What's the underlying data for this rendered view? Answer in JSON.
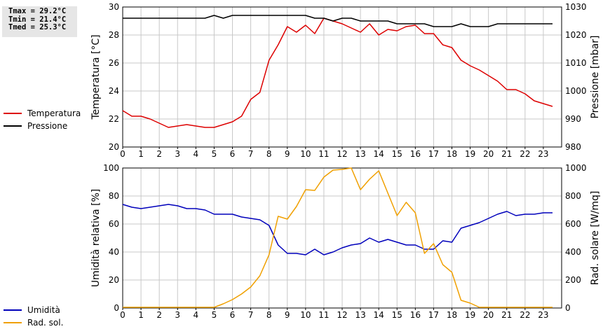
{
  "stats": {
    "tmax": "Tmax = 29.2°C",
    "tmin": "Tmin = 21.4°C",
    "tmed": "Tmed = 25.3°C"
  },
  "colors": {
    "temperature": "#dd0000",
    "pressure": "#000000",
    "humidity": "#0000bb",
    "radiation": "#f0a000",
    "grid": "#c8c8c8"
  },
  "chart_data": [
    {
      "type": "line",
      "ylabel": "Temperatura [°C]",
      "y2label": "Pressione [mbar]",
      "xlim": [
        0,
        24
      ],
      "ylim": [
        20,
        30
      ],
      "y2lim": [
        980,
        1030
      ],
      "xticks": [
        "0",
        "1",
        "2",
        "3",
        "4",
        "5",
        "6",
        "7",
        "8",
        "9",
        "10",
        "11",
        "12",
        "13",
        "14",
        "15",
        "16",
        "17",
        "18",
        "19",
        "20",
        "21",
        "22",
        "23"
      ],
      "yticks": [
        "20",
        "22",
        "24",
        "26",
        "28",
        "30"
      ],
      "y2ticks": [
        "980",
        "990",
        "1000",
        "1010",
        "1020",
        "1030"
      ],
      "grid": true,
      "legend_position": "left",
      "x": [
        0,
        0.5,
        1,
        1.5,
        2,
        2.5,
        3,
        3.5,
        4,
        4.5,
        5,
        5.5,
        6,
        6.5,
        7,
        7.5,
        8,
        8.5,
        9,
        9.5,
        10,
        10.5,
        11,
        11.5,
        12,
        12.5,
        13,
        13.5,
        14,
        14.5,
        15,
        15.5,
        16,
        16.5,
        17,
        17.5,
        18,
        18.5,
        19,
        19.5,
        20,
        20.5,
        21,
        21.5,
        22,
        22.5,
        23,
        23.5
      ],
      "series": [
        {
          "name": "Temperatura",
          "axis": "left",
          "values": [
            22.6,
            22.2,
            22.2,
            22.0,
            21.7,
            21.4,
            21.5,
            21.6,
            21.5,
            21.4,
            21.4,
            21.6,
            21.8,
            22.2,
            23.4,
            23.9,
            26.2,
            27.3,
            28.6,
            28.2,
            28.7,
            28.1,
            29.2,
            29.0,
            28.8,
            28.5,
            28.2,
            28.8,
            28.0,
            28.4,
            28.3,
            28.6,
            28.7,
            28.1,
            28.1,
            27.3,
            27.1,
            26.2,
            25.8,
            25.5,
            25.1,
            24.7,
            24.1,
            24.1,
            23.8,
            23.3,
            23.1,
            22.9
          ]
        },
        {
          "name": "Pressione",
          "axis": "right",
          "values": [
            1026,
            1026,
            1026,
            1026,
            1026,
            1026,
            1026,
            1026,
            1026,
            1026,
            1027,
            1026,
            1027,
            1027,
            1027,
            1027,
            1027,
            1027,
            1027,
            1027,
            1027,
            1026,
            1026,
            1025,
            1026,
            1026,
            1025,
            1025,
            1025,
            1025,
            1024,
            1024,
            1024,
            1024,
            1023,
            1023,
            1023,
            1024,
            1023,
            1023,
            1023,
            1024,
            1024,
            1024,
            1024,
            1024,
            1024,
            1024
          ]
        }
      ]
    },
    {
      "type": "line",
      "ylabel": "Umidità relativa [%]",
      "y2label": "Rad. solare [W/mq]",
      "xlim": [
        0,
        24
      ],
      "ylim": [
        0,
        100
      ],
      "y2lim": [
        0,
        1000
      ],
      "xticks": [
        "0",
        "1",
        "2",
        "3",
        "4",
        "5",
        "6",
        "7",
        "8",
        "9",
        "10",
        "11",
        "12",
        "13",
        "14",
        "15",
        "16",
        "17",
        "18",
        "19",
        "20",
        "21",
        "22",
        "23"
      ],
      "yticks": [
        "0",
        "20",
        "40",
        "60",
        "80",
        "100"
      ],
      "y2ticks": [
        "0",
        "200",
        "400",
        "600",
        "800",
        "1000"
      ],
      "grid": true,
      "legend_position": "left",
      "x": [
        0,
        0.5,
        1,
        1.5,
        2,
        2.5,
        3,
        3.5,
        4,
        4.5,
        5,
        5.5,
        6,
        6.5,
        7,
        7.5,
        8,
        8.5,
        9,
        9.5,
        10,
        10.5,
        11,
        11.5,
        12,
        12.5,
        13,
        13.5,
        14,
        14.5,
        15,
        15.5,
        16,
        16.5,
        17,
        17.5,
        18,
        18.5,
        19,
        19.5,
        20,
        20.5,
        21,
        21.5,
        22,
        22.5,
        23,
        23.5
      ],
      "series": [
        {
          "name": "Umidità",
          "axis": "left",
          "values": [
            74,
            72,
            71,
            72,
            73,
            74,
            73,
            71,
            71,
            70,
            67,
            67,
            67,
            65,
            64,
            63,
            59,
            45,
            39,
            39,
            38,
            42,
            38,
            40,
            43,
            45,
            46,
            50,
            47,
            49,
            47,
            45,
            45,
            42,
            42,
            48,
            47,
            57,
            59,
            61,
            64,
            67,
            69,
            66,
            67,
            67,
            68,
            68
          ]
        },
        {
          "name": "Rad. sol.",
          "axis": "right",
          "values": [
            5,
            5,
            5,
            5,
            5,
            5,
            5,
            5,
            5,
            5,
            5,
            30,
            60,
            100,
            150,
            230,
            380,
            655,
            635,
            725,
            845,
            840,
            935,
            985,
            990,
            1000,
            845,
            920,
            980,
            820,
            660,
            755,
            680,
            390,
            460,
            310,
            255,
            55,
            35,
            5,
            5,
            5,
            5,
            5,
            5,
            5,
            5,
            5
          ]
        }
      ]
    }
  ]
}
